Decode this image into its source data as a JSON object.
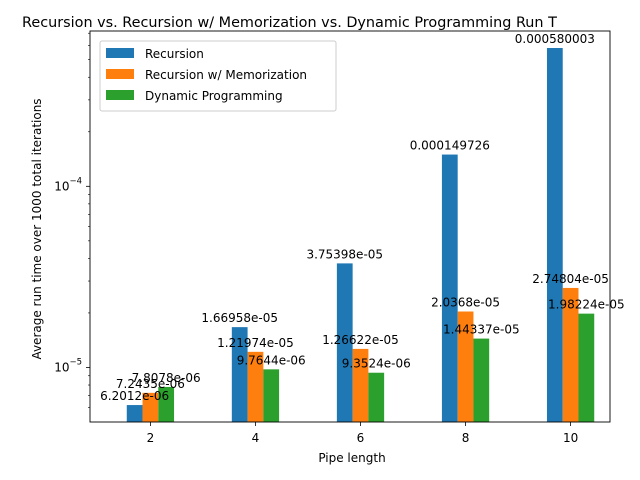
{
  "chart_data": {
    "type": "bar",
    "title": "Recursion vs. Recursion w/ Memorization vs. Dynamic Programming Run T",
    "xlabel": "Pipe length",
    "ylabel": "Average run time over 1000 total iterations",
    "yscale": "log",
    "ylim": [
      5e-06,
      0.00072
    ],
    "grid": false,
    "legend_position": "top-left",
    "categories": [
      "2",
      "4",
      "6",
      "8",
      "10"
    ],
    "series": [
      {
        "name": "Recursion",
        "color": "#1f77b4",
        "values": [
          6.2012e-06,
          1.66958e-05,
          3.75398e-05,
          0.000149726,
          0.000580003
        ],
        "labels": [
          "6.2012e-06",
          "1.66958e-05",
          "3.75398e-05",
          "0.000149726",
          "0.000580003"
        ]
      },
      {
        "name": "Recursion w/ Memorization",
        "color": "#ff7f0e",
        "values": [
          7.2435e-06,
          1.21974e-05,
          1.26622e-05,
          2.0368e-05,
          2.74804e-05
        ],
        "labels": [
          "7.2435e-06",
          "1.21974e-05",
          "1.26622e-05",
          "2.0368e-05",
          "2.74804e-05"
        ]
      },
      {
        "name": "Dynamic Programming",
        "color": "#2ca02c",
        "values": [
          7.8078e-06,
          9.7644e-06,
          9.3524e-06,
          1.44337e-05,
          1.98224e-05
        ],
        "labels": [
          "7.8078e-06",
          "9.7644e-06",
          "9.3524e-06",
          "1.44337e-05",
          "1.98224e-05"
        ]
      }
    ],
    "yticks": [
      {
        "value": 1e-05,
        "base": "10",
        "exp": "−5"
      },
      {
        "value": 0.0001,
        "base": "10",
        "exp": "−4"
      }
    ]
  }
}
